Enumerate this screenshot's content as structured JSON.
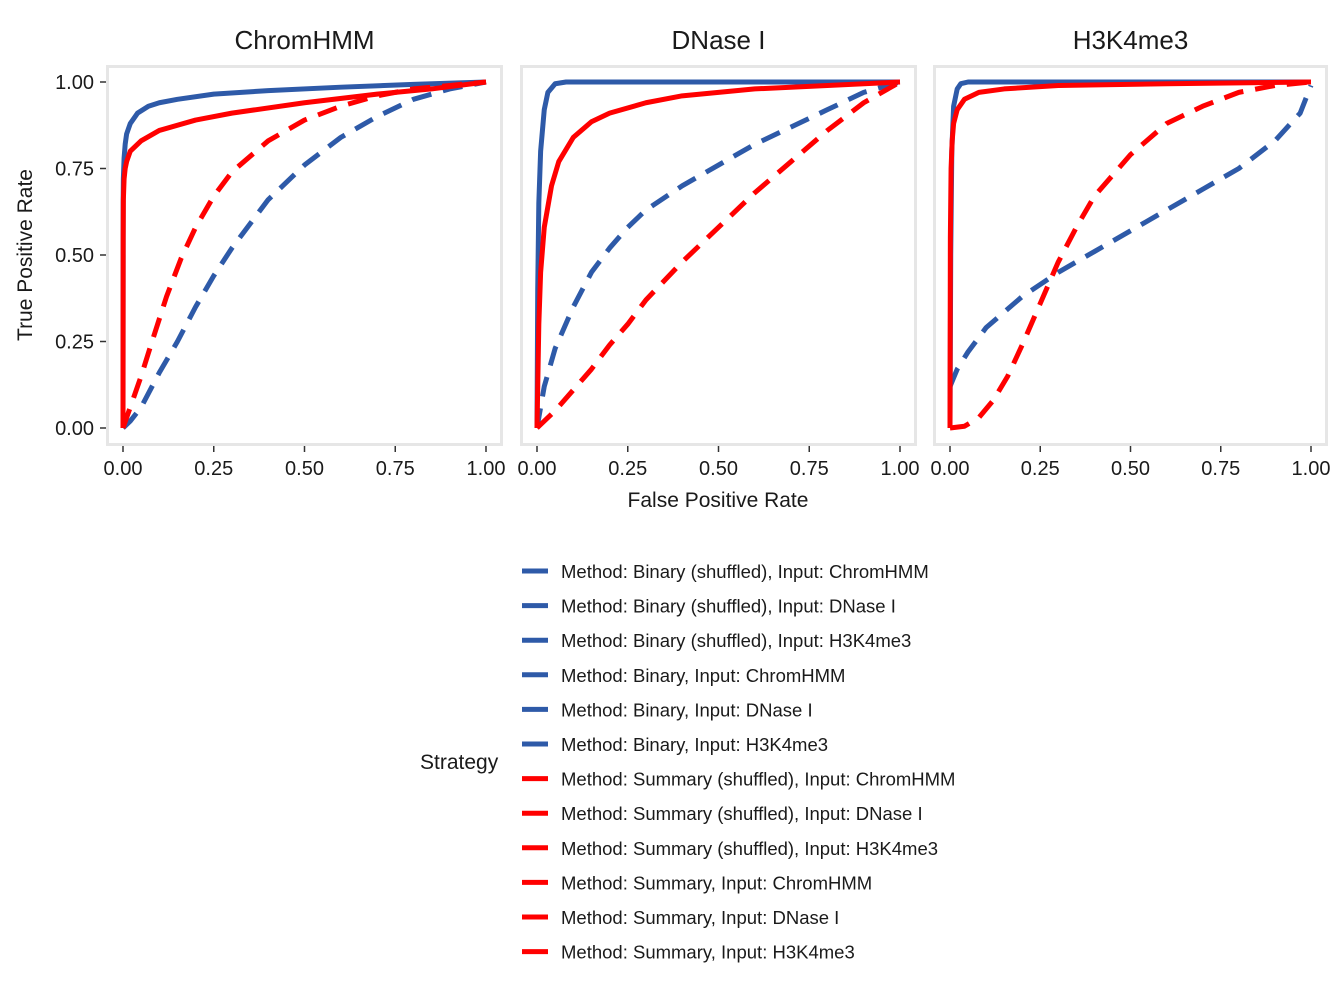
{
  "chart_data": {
    "type": "line",
    "xlabel": "False Positive Rate",
    "ylabel": "True Positive Rate",
    "xlim": [
      0,
      1
    ],
    "ylim": [
      0,
      1
    ],
    "x_ticks": [
      "0.00",
      "0.25",
      "0.50",
      "0.75",
      "1.00"
    ],
    "y_ticks": [
      "0.00",
      "0.25",
      "0.50",
      "0.75",
      "1.00"
    ],
    "grid": false,
    "legend_position": "bottom",
    "legend_title": "Strategy",
    "colors": {
      "Binary": "#2e5aa8",
      "Summary": "#ff0000",
      "panel_border": "#e6e6e6"
    },
    "styles": [
      {
        "name": "Method: Binary (shuffled), Input: ChromHMM",
        "color": "#2e5aa8",
        "dash": true
      },
      {
        "name": "Method: Binary (shuffled), Input: DNase I",
        "color": "#2e5aa8",
        "dash": true
      },
      {
        "name": "Method: Binary (shuffled), Input: H3K4me3",
        "color": "#2e5aa8",
        "dash": true
      },
      {
        "name": "Method: Binary, Input: ChromHMM",
        "color": "#2e5aa8",
        "dash": false
      },
      {
        "name": "Method: Binary, Input: DNase I",
        "color": "#2e5aa8",
        "dash": false
      },
      {
        "name": "Method: Binary, Input: H3K4me3",
        "color": "#2e5aa8",
        "dash": false
      },
      {
        "name": "Method: Summary (shuffled), Input: ChromHMM",
        "color": "#ff0000",
        "dash": true
      },
      {
        "name": "Method: Summary (shuffled), Input: DNase I",
        "color": "#ff0000",
        "dash": true
      },
      {
        "name": "Method: Summary (shuffled), Input: H3K4me3",
        "color": "#ff0000",
        "dash": true
      },
      {
        "name": "Method: Summary, Input: ChromHMM",
        "color": "#ff0000",
        "dash": false
      },
      {
        "name": "Method: Summary, Input: DNase I",
        "color": "#ff0000",
        "dash": false
      },
      {
        "name": "Method: Summary, Input: H3K4me3",
        "color": "#ff0000",
        "dash": false
      }
    ],
    "panels": [
      {
        "title": "ChromHMM",
        "series": [
          {
            "style": 0,
            "points": [
              [
                0,
                0
              ],
              [
                0.02,
                0.02
              ],
              [
                0.05,
                0.06
              ],
              [
                0.1,
                0.16
              ],
              [
                0.15,
                0.25
              ],
              [
                0.2,
                0.35
              ],
              [
                0.25,
                0.44
              ],
              [
                0.3,
                0.52
              ],
              [
                0.35,
                0.59
              ],
              [
                0.4,
                0.66
              ],
              [
                0.5,
                0.76
              ],
              [
                0.6,
                0.84
              ],
              [
                0.7,
                0.9
              ],
              [
                0.8,
                0.95
              ],
              [
                0.9,
                0.98
              ],
              [
                1,
                1
              ]
            ]
          },
          {
            "style": 3,
            "points": [
              [
                0,
                0
              ],
              [
                0.0005,
                0.65
              ],
              [
                0.001,
                0.72
              ],
              [
                0.003,
                0.78
              ],
              [
                0.006,
                0.82
              ],
              [
                0.01,
                0.85
              ],
              [
                0.02,
                0.88
              ],
              [
                0.04,
                0.91
              ],
              [
                0.07,
                0.93
              ],
              [
                0.1,
                0.94
              ],
              [
                0.15,
                0.95
              ],
              [
                0.25,
                0.965
              ],
              [
                0.4,
                0.975
              ],
              [
                0.6,
                0.985
              ],
              [
                0.8,
                0.993
              ],
              [
                1,
                1
              ]
            ]
          },
          {
            "style": 6,
            "points": [
              [
                0,
                0
              ],
              [
                0.02,
                0.06
              ],
              [
                0.05,
                0.15
              ],
              [
                0.08,
                0.25
              ],
              [
                0.12,
                0.38
              ],
              [
                0.16,
                0.49
              ],
              [
                0.2,
                0.58
              ],
              [
                0.25,
                0.67
              ],
              [
                0.3,
                0.74
              ],
              [
                0.4,
                0.83
              ],
              [
                0.5,
                0.89
              ],
              [
                0.6,
                0.93
              ],
              [
                0.7,
                0.96
              ],
              [
                0.8,
                0.98
              ],
              [
                0.9,
                0.99
              ],
              [
                1,
                1
              ]
            ]
          },
          {
            "style": 9,
            "points": [
              [
                0,
                0
              ],
              [
                0.0005,
                0.55
              ],
              [
                0.001,
                0.66
              ],
              [
                0.003,
                0.72
              ],
              [
                0.006,
                0.75
              ],
              [
                0.01,
                0.77
              ],
              [
                0.02,
                0.8
              ],
              [
                0.05,
                0.83
              ],
              [
                0.1,
                0.86
              ],
              [
                0.2,
                0.89
              ],
              [
                0.3,
                0.91
              ],
              [
                0.5,
                0.94
              ],
              [
                0.7,
                0.965
              ],
              [
                0.85,
                0.98
              ],
              [
                1,
                1
              ]
            ]
          }
        ]
      },
      {
        "title": "DNase I",
        "series": [
          {
            "style": 1,
            "points": [
              [
                0,
                0
              ],
              [
                0.02,
                0.12
              ],
              [
                0.05,
                0.23
              ],
              [
                0.1,
                0.35
              ],
              [
                0.15,
                0.45
              ],
              [
                0.2,
                0.52
              ],
              [
                0.25,
                0.58
              ],
              [
                0.3,
                0.63
              ],
              [
                0.4,
                0.7
              ],
              [
                0.5,
                0.76
              ],
              [
                0.6,
                0.82
              ],
              [
                0.7,
                0.87
              ],
              [
                0.8,
                0.92
              ],
              [
                0.9,
                0.97
              ],
              [
                1,
                1
              ]
            ]
          },
          {
            "style": 4,
            "points": [
              [
                0,
                0
              ],
              [
                0.002,
                0.4
              ],
              [
                0.005,
                0.65
              ],
              [
                0.01,
                0.8
              ],
              [
                0.02,
                0.92
              ],
              [
                0.03,
                0.97
              ],
              [
                0.05,
                0.995
              ],
              [
                0.08,
                1
              ],
              [
                1,
                1
              ]
            ]
          },
          {
            "style": 7,
            "points": [
              [
                0,
                0
              ],
              [
                0.05,
                0.05
              ],
              [
                0.1,
                0.11
              ],
              [
                0.15,
                0.17
              ],
              [
                0.2,
                0.24
              ],
              [
                0.25,
                0.3
              ],
              [
                0.3,
                0.37
              ],
              [
                0.4,
                0.48
              ],
              [
                0.5,
                0.58
              ],
              [
                0.6,
                0.68
              ],
              [
                0.7,
                0.77
              ],
              [
                0.8,
                0.86
              ],
              [
                0.9,
                0.94
              ],
              [
                1,
                1
              ]
            ]
          },
          {
            "style": 10,
            "points": [
              [
                0,
                0
              ],
              [
                0.005,
                0.3
              ],
              [
                0.01,
                0.45
              ],
              [
                0.02,
                0.58
              ],
              [
                0.04,
                0.7
              ],
              [
                0.06,
                0.77
              ],
              [
                0.1,
                0.84
              ],
              [
                0.15,
                0.885
              ],
              [
                0.2,
                0.91
              ],
              [
                0.3,
                0.94
              ],
              [
                0.4,
                0.96
              ],
              [
                0.6,
                0.98
              ],
              [
                0.8,
                0.99
              ],
              [
                1,
                1
              ]
            ]
          }
        ]
      },
      {
        "title": "H3K4me3",
        "series": [
          {
            "style": 2,
            "points": [
              [
                0,
                0.12
              ],
              [
                0.02,
                0.17
              ],
              [
                0.05,
                0.22
              ],
              [
                0.1,
                0.29
              ],
              [
                0.2,
                0.38
              ],
              [
                0.3,
                0.45
              ],
              [
                0.4,
                0.51
              ],
              [
                0.5,
                0.57
              ],
              [
                0.6,
                0.63
              ],
              [
                0.7,
                0.69
              ],
              [
                0.8,
                0.75
              ],
              [
                0.9,
                0.83
              ],
              [
                0.97,
                0.91
              ],
              [
                1,
                0.99
              ]
            ]
          },
          {
            "style": 5,
            "points": [
              [
                0,
                0
              ],
              [
                0.002,
                0.5
              ],
              [
                0.005,
                0.8
              ],
              [
                0.01,
                0.93
              ],
              [
                0.02,
                0.98
              ],
              [
                0.03,
                0.995
              ],
              [
                0.05,
                1
              ],
              [
                1,
                1
              ]
            ]
          },
          {
            "style": 8,
            "points": [
              [
                0,
                0
              ],
              [
                0.04,
                0.005
              ],
              [
                0.08,
                0.03
              ],
              [
                0.12,
                0.08
              ],
              [
                0.16,
                0.15
              ],
              [
                0.2,
                0.24
              ],
              [
                0.25,
                0.36
              ],
              [
                0.3,
                0.48
              ],
              [
                0.35,
                0.58
              ],
              [
                0.4,
                0.67
              ],
              [
                0.5,
                0.79
              ],
              [
                0.6,
                0.88
              ],
              [
                0.7,
                0.93
              ],
              [
                0.8,
                0.97
              ],
              [
                0.9,
                0.99
              ],
              [
                1,
                1
              ]
            ]
          },
          {
            "style": 11,
            "points": [
              [
                0,
                0
              ],
              [
                0.001,
                0.55
              ],
              [
                0.003,
                0.75
              ],
              [
                0.006,
                0.83
              ],
              [
                0.01,
                0.88
              ],
              [
                0.02,
                0.92
              ],
              [
                0.04,
                0.95
              ],
              [
                0.08,
                0.97
              ],
              [
                0.15,
                0.98
              ],
              [
                0.3,
                0.99
              ],
              [
                0.6,
                0.995
              ],
              [
                1,
                1
              ]
            ]
          }
        ]
      }
    ]
  }
}
